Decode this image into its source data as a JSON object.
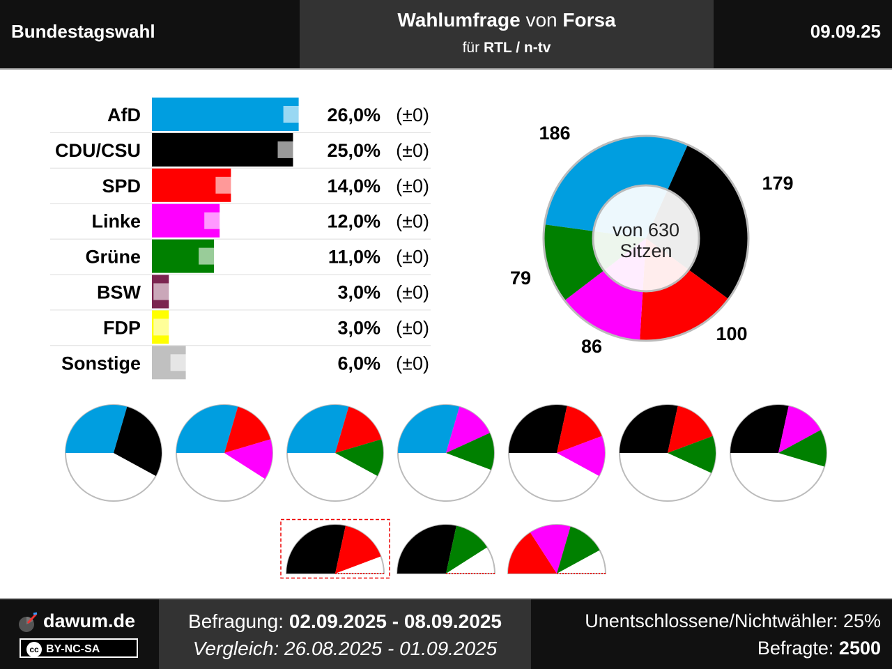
{
  "header": {
    "left": "Bundestagswahl",
    "title_bold1": "Wahlumfrage",
    "title_mid": " von ",
    "title_bold2": "Forsa",
    "sub_pre": "für ",
    "sub_bold": "RTL / n-tv",
    "date": "09.09.25"
  },
  "chart_data": [
    {
      "type": "bar",
      "categories": [
        "AfD",
        "CDU/CSU",
        "SPD",
        "Linke",
        "Grüne",
        "BSW",
        "FDP",
        "Sonstige"
      ],
      "values": [
        26.0,
        25.0,
        14.0,
        12.0,
        11.0,
        3.0,
        3.0,
        6.0
      ],
      "previous": [
        26.0,
        25.0,
        14.0,
        12.0,
        11.0,
        3.0,
        3.0,
        6.0
      ],
      "value_labels": [
        "26,0%",
        "25,0%",
        "14,0%",
        "12,0%",
        "11,0%",
        "3,0%",
        "3,0%",
        "6,0%"
      ],
      "change_labels": [
        "(±0)",
        "(±0)",
        "(±0)",
        "(±0)",
        "(±0)",
        "(±0)",
        "(±0)",
        "(±0)"
      ],
      "colors": [
        "#009ee0",
        "#000000",
        "#ff0000",
        "#ff00ff",
        "#008000",
        "#7b2450",
        "#ffff00",
        "#c0c0c0"
      ]
    },
    {
      "type": "pie",
      "title": "von 630 Sitzen",
      "title_lines": [
        "von 630",
        "Sitzen"
      ],
      "total": 630,
      "categories": [
        "AfD",
        "CDU/CSU",
        "SPD",
        "Linke",
        "Grüne"
      ],
      "values": [
        186,
        179,
        100,
        86,
        79
      ],
      "labels": [
        "186",
        "179",
        "100",
        "86",
        "79"
      ],
      "colors": [
        "#009ee0",
        "#000000",
        "#ff0000",
        "#ff00ff",
        "#008000"
      ]
    }
  ],
  "coalitions": {
    "row1": [
      {
        "parties": [
          "AfD",
          "CDU/CSU"
        ],
        "seats": [
          186,
          179
        ]
      },
      {
        "parties": [
          "AfD",
          "SPD",
          "Linke"
        ],
        "seats": [
          186,
          100,
          86
        ]
      },
      {
        "parties": [
          "AfD",
          "SPD",
          "Grüne"
        ],
        "seats": [
          186,
          100,
          79
        ]
      },
      {
        "parties": [
          "AfD",
          "Linke",
          "Grüne"
        ],
        "seats": [
          186,
          86,
          79
        ]
      },
      {
        "parties": [
          "CDU/CSU",
          "SPD",
          "Linke"
        ],
        "seats": [
          179,
          100,
          86
        ]
      },
      {
        "parties": [
          "CDU/CSU",
          "SPD",
          "Grüne"
        ],
        "seats": [
          179,
          100,
          79
        ]
      },
      {
        "parties": [
          "CDU/CSU",
          "Linke",
          "Grüne"
        ],
        "seats": [
          179,
          86,
          79
        ]
      }
    ],
    "row2": [
      {
        "parties": [
          "CDU/CSU",
          "SPD"
        ],
        "seats": [
          179,
          100
        ],
        "highlighted": true
      },
      {
        "parties": [
          "CDU/CSU",
          "Grüne"
        ],
        "seats": [
          179,
          79
        ],
        "highlighted": false
      },
      {
        "parties": [
          "SPD",
          "Linke",
          "Grüne"
        ],
        "seats": [
          100,
          86,
          79
        ],
        "highlighted": false
      }
    ]
  },
  "footer": {
    "brand": "dawum.de",
    "license": "BY-NC-SA",
    "license_cc": "cc",
    "survey_label": "Befragung: ",
    "survey_range": "02.09.2025 - 08.09.2025",
    "compare_label": "Vergleich: ",
    "compare_range": "26.08.2025 - 01.09.2025",
    "undecided": "Unentschlossene/Nichtwähler: 25%",
    "respondents_label": "Befragte: ",
    "respondents": "2500"
  }
}
